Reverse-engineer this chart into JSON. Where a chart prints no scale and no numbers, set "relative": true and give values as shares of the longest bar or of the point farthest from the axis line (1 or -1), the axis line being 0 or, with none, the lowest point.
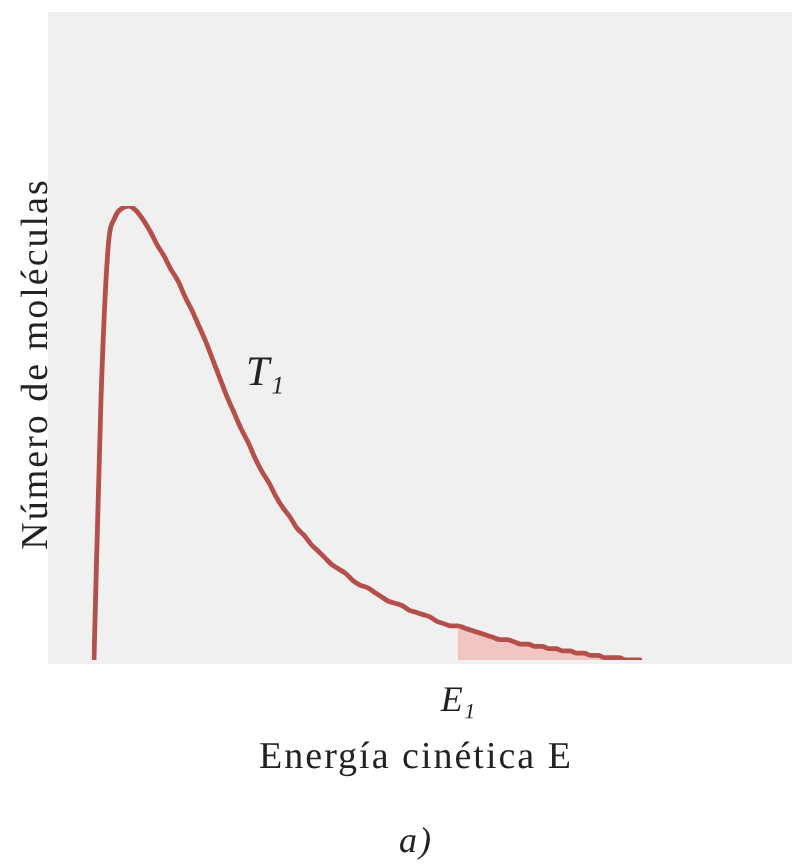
{
  "chart_data": {
    "type": "line",
    "relative": true,
    "ylabel": "Número de moléculas",
    "xlabel": "Energía cinética E",
    "annotations": [
      "E₁",
      "a)"
    ],
    "marker": "none",
    "categories": [
      null,
      null,
      null,
      null,
      null,
      null,
      null,
      null,
      null,
      null,
      null,
      null,
      null,
      null,
      null,
      null,
      null,
      null,
      null,
      null,
      null,
      null,
      null,
      null,
      null,
      null,
      null,
      null,
      null,
      null,
      null,
      null,
      null,
      null,
      null,
      null,
      null,
      null,
      null,
      null,
      null,
      null,
      null,
      null,
      null,
      null,
      null,
      null,
      null,
      null,
      null,
      null,
      null,
      null,
      null,
      null,
      null,
      null,
      null,
      null,
      null,
      null,
      null,
      null,
      null,
      null,
      null,
      null,
      null,
      null,
      null,
      null,
      null,
      null,
      null,
      null,
      null,
      null,
      null
    ],
    "series": [
      {
        "name": "T₁",
        "color": "#b4504c",
        "values": [
          0,
          0.575,
          0.905,
          0.975,
          0.995,
          1,
          0.99,
          0.97,
          0.945,
          0.915,
          0.89,
          0.86,
          0.835,
          0.8,
          0.77,
          0.735,
          0.7,
          0.66,
          0.62,
          0.58,
          0.545,
          0.51,
          0.48,
          0.445,
          0.415,
          0.39,
          0.36,
          0.335,
          0.315,
          0.29,
          0.275,
          0.255,
          0.24,
          0.225,
          0.21,
          0.2,
          0.19,
          0.175,
          0.165,
          0.16,
          0.15,
          0.14,
          0.13,
          0.125,
          0.12,
          0.11,
          0.105,
          0.1,
          0.095,
          0.085,
          0.08,
          0.075,
          0.075,
          0.07,
          0.065,
          0.06,
          0.055,
          0.05,
          0.045,
          0.045,
          0.04,
          0.035,
          0.035,
          0.03,
          0.03,
          0.025,
          0.025,
          0.02,
          0.02,
          0.015,
          0.015,
          0.01,
          0.01,
          0.005,
          0.005,
          0.005,
          0,
          0,
          0
        ]
      },
      {
        "type": "area",
        "color": "#f2c4c2",
        "values": [
          null,
          null,
          null,
          null,
          null,
          null,
          null,
          null,
          null,
          null,
          null,
          null,
          null,
          null,
          null,
          null,
          null,
          null,
          null,
          null,
          null,
          null,
          null,
          null,
          null,
          null,
          null,
          null,
          null,
          null,
          null,
          null,
          null,
          null,
          null,
          null,
          null,
          null,
          null,
          null,
          null,
          null,
          null,
          null,
          null,
          null,
          null,
          null,
          null,
          null,
          null,
          null,
          0.075,
          0.07,
          0.065,
          0.06,
          0.055,
          0.05,
          0.045,
          0.045,
          0.04,
          0.035,
          0.035,
          0.03,
          0.03,
          0.025,
          0.025,
          0.02,
          0.02,
          0.015,
          0.015,
          0.01,
          0.01,
          0.005,
          0.005,
          0.005,
          0,
          0,
          0
        ]
      }
    ]
  }
}
